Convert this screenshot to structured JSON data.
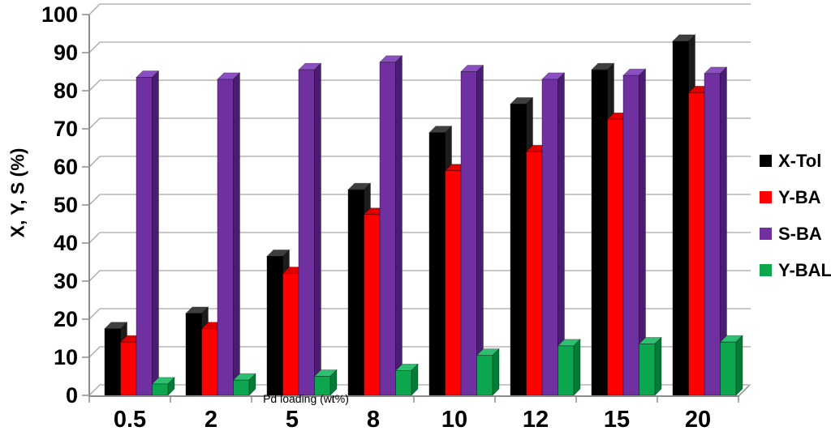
{
  "chart_data": {
    "type": "bar",
    "effect": "3d-clustered",
    "title": "",
    "xlabel": "Pd loading (wt%)",
    "ylabel": "X, Y, S (%)",
    "ylim": [
      0,
      100
    ],
    "yticks": [
      0,
      10,
      20,
      30,
      40,
      50,
      60,
      70,
      80,
      90,
      100
    ],
    "grid": true,
    "legend_position": "right",
    "categories": [
      "0.5",
      "2",
      "5",
      "8",
      "10",
      "12",
      "15",
      "20"
    ],
    "series": [
      {
        "name": "X-Tol",
        "color": "#000000",
        "top_color": "#3f3f3f",
        "side_color": "#1c1c1c",
        "values": [
          17.5,
          21.5,
          36.5,
          54,
          69,
          76.5,
          85.5,
          93
        ]
      },
      {
        "name": "Y-BA",
        "color": "#fe0000",
        "top_color": "#e00000",
        "side_color": "#9a0000",
        "values": [
          14,
          17.5,
          32,
          47.5,
          59,
          64,
          72.5,
          79.5
        ]
      },
      {
        "name": "S-BA",
        "color": "#7030a0",
        "top_color": "#8a4fc0",
        "side_color": "#4a1e6e",
        "values": [
          83.5,
          83,
          85.5,
          87.5,
          85,
          83,
          84,
          84.5
        ]
      },
      {
        "name": "Y-BAL",
        "color": "#0ca64f",
        "top_color": "#2fbf70",
        "side_color": "#067a38",
        "values": [
          3,
          4,
          5,
          6.5,
          10.5,
          13,
          13.5,
          14
        ]
      }
    ],
    "grid_color": "#a8a8a8",
    "axis_color": "#8c8c8c",
    "text_color": "#000000"
  }
}
